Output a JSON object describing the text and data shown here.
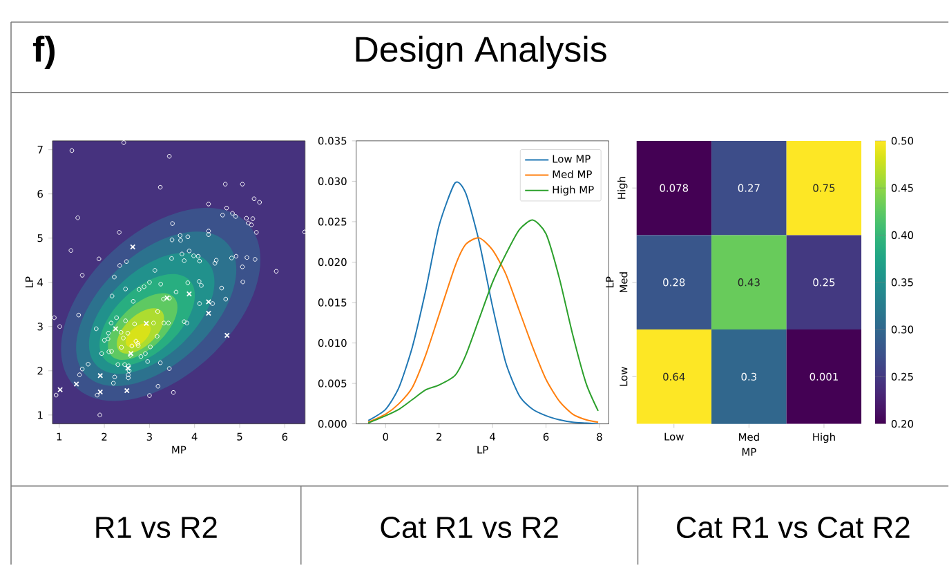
{
  "chart_data": [
    {
      "type": "other",
      "title": "Design Analysis",
      "annotations": [
        "f)"
      ]
    },
    {
      "type": "scatter",
      "subtitle": "R1 vs R2",
      "xlabel": "MP",
      "ylabel": "LP",
      "xlim": [
        0.85,
        6.45
      ],
      "ylim": [
        0.8,
        7.2
      ],
      "xticks": [
        1,
        2,
        3,
        4,
        5,
        6
      ],
      "yticks": [
        1,
        2,
        3,
        4,
        5,
        6,
        7
      ],
      "series": [
        {
          "color": "#ffffff",
          "marker": "circle",
          "x": [
            1.28,
            2.43,
            3.44,
            3.24,
            1.41,
            2.33,
            1.26,
            1.88,
            2.49,
            2.34,
            1.51,
            2.22,
            3.12,
            2.17,
            2.47,
            2.64,
            2.77,
            2.88,
            3.0,
            3.25,
            3.31,
            3.44,
            3.59,
            3.49,
            3.5,
            3.51,
            3.68,
            3.69,
            3.85,
            3.72,
            3.77,
            3.88,
            3.98,
            4.08,
            4.11,
            4.31,
            4.31,
            4.31,
            4.45,
            4.48,
            4.68,
            5.06,
            4.71,
            4.62,
            4.84,
            4.91,
            5.32,
            5.44,
            5.15,
            5.29,
            5.19,
            5.26,
            5.37,
            4.82,
            4.92,
            5.16,
            5.34,
            5.06,
            5.07,
            4.6,
            4.69,
            4.11,
            4.4,
            3.85,
            4.1,
            4.15,
            3.77,
            3.83,
            3.42,
            3.18,
            3.09,
            3.32,
            2.67,
            2.27,
            2.15,
            2.47,
            2.37,
            2.42,
            2.52,
            2.09,
            1.82,
            2.08,
            2.0,
            2.7,
            2.75,
            2.74,
            3.17,
            2.61,
            2.38,
            2.1,
            2.16,
            1.94,
            2.57,
            2.91,
            3.02,
            2.96,
            2.81,
            2.3,
            2.45,
            2.54,
            2.55,
            2.53,
            2.53,
            2.23,
            2.2,
            3.24,
            3.44,
            3.19,
            3.53,
            3.0,
            1.84,
            1.9,
            0.93,
            1.64,
            1.51,
            1.45,
            1.01,
            1.43,
            0.89,
            6.44,
            5.81
          ],
          "values": [
            6.98,
            7.16,
            6.85,
            6.15,
            5.46,
            5.13,
            4.72,
            4.53,
            4.47,
            4.38,
            4.16,
            4.12,
            4.27,
            3.69,
            3.85,
            3.57,
            3.84,
            3.9,
            4.0,
            3.96,
            3.62,
            3.64,
            3.78,
            4.54,
            4.96,
            5.33,
            5.06,
            4.95,
            5.03,
            4.64,
            4.49,
            4.71,
            4.6,
            4.59,
            4.48,
            5.16,
            5.08,
            5.77,
            4.43,
            4.5,
            6.22,
            6.22,
            5.68,
            5.52,
            5.56,
            5.49,
            5.89,
            5.81,
            5.45,
            5.44,
            5.34,
            5.3,
            5.13,
            4.55,
            4.59,
            4.56,
            4.52,
            4.35,
            4.01,
            3.87,
            3.62,
            3.52,
            3.52,
            3.99,
            4.02,
            3.93,
            3.11,
            3.08,
            3.08,
            3.34,
            3.08,
            3.08,
            3.06,
            3.2,
            3.08,
            3.13,
            2.87,
            2.74,
            2.85,
            2.85,
            2.95,
            2.72,
            2.69,
            2.67,
            2.57,
            2.62,
            2.78,
            2.56,
            2.53,
            2.43,
            2.44,
            2.39,
            2.35,
            2.39,
            2.54,
            2.21,
            2.32,
            2.14,
            2.14,
            2.11,
            2.0,
            1.91,
            1.84,
            1.86,
            1.72,
            2.18,
            2.05,
            1.65,
            1.51,
            1.44,
            1.45,
            1.0,
            1.45,
            2.15,
            2.04,
            1.91,
            3.0,
            3.26,
            3.2,
            5.14,
            4.25
          ]
        },
        {
          "color": "#ffffff",
          "marker": "cross",
          "x": [
            2.63,
            2.25,
            2.93,
            3.39,
            3.88,
            4.31,
            4.31,
            4.72,
            2.59,
            2.52,
            1.91,
            1.38,
            1.02,
            1.91,
            2.5
          ],
          "values": [
            4.8,
            2.95,
            3.07,
            3.65,
            3.74,
            3.56,
            3.3,
            2.8,
            2.39,
            2.06,
            1.89,
            1.7,
            1.57,
            1.52,
            1.55
          ]
        }
      ]
    },
    {
      "type": "line",
      "subtitle": "Cat R1 vs R2",
      "xlabel": "LP",
      "xlim": [
        -1.1,
        8.35
      ],
      "ylim": [
        0,
        0.035
      ],
      "xticks": [
        0,
        2,
        4,
        6,
        8
      ],
      "yticks": [
        {
          "value": 0,
          "label": "0.000"
        },
        {
          "value": 0.005,
          "label": "0.005"
        },
        {
          "value": 0.01,
          "label": "0.010"
        },
        {
          "value": 0.015,
          "label": "0.015"
        },
        {
          "value": 0.02,
          "label": "0.020"
        },
        {
          "value": 0.025,
          "label": "0.025"
        },
        {
          "value": 0.03,
          "label": "0.030"
        },
        {
          "value": 0.035,
          "label": "0.035"
        }
      ],
      "legend": "top right",
      "x": [
        -0.65,
        0,
        0.5,
        1,
        1.5,
        2,
        2.6,
        3,
        3.5,
        4,
        4.5,
        5,
        5.5,
        6,
        6.5,
        7,
        7.5,
        7.95
      ],
      "series": [
        {
          "name": "Low MP",
          "color": "#1f77b4",
          "values": [
            0.0004,
            0.0018,
            0.0045,
            0.0095,
            0.0165,
            0.0245,
            0.0298,
            0.0285,
            0.0225,
            0.0145,
            0.0075,
            0.0035,
            0.0018,
            0.001,
            0.0005,
            0.0002,
            0.0001,
            0.0
          ]
        },
        {
          "name": "Med MP",
          "color": "#ff7f0e",
          "values": [
            0.0002,
            0.0012,
            0.0025,
            0.0045,
            0.0085,
            0.0135,
            0.0195,
            0.0222,
            0.023,
            0.0215,
            0.0185,
            0.014,
            0.0095,
            0.0055,
            0.0028,
            0.0012,
            0.0005,
            0.0002
          ]
        },
        {
          "name": "High MP",
          "color": "#2ca02c",
          "values": [
            0.0001,
            0.001,
            0.0018,
            0.003,
            0.0042,
            0.0048,
            0.006,
            0.0085,
            0.013,
            0.0175,
            0.021,
            0.024,
            0.0252,
            0.0235,
            0.018,
            0.011,
            0.005,
            0.0016
          ]
        }
      ]
    },
    {
      "type": "heatmap",
      "subtitle": "Cat R1 vs Cat R2",
      "xlabel": "MP",
      "ylabel": "LP",
      "categories": [
        "Low",
        "Med",
        "High"
      ],
      "y_categories": [
        "High",
        "Med",
        "Low"
      ],
      "cells": [
        [
          0.078,
          0.27,
          0.75
        ],
        [
          0.28,
          0.43,
          0.25
        ],
        [
          0.64,
          0.3,
          0.001
        ]
      ],
      "data_labels": true,
      "clim": [
        0.2,
        0.5
      ],
      "cticks": [
        {
          "value": 0.2,
          "label": "0.20"
        },
        {
          "value": 0.25,
          "label": "0.25"
        },
        {
          "value": 0.3,
          "label": "0.30"
        },
        {
          "value": 0.35,
          "label": "0.35"
        },
        {
          "value": 0.4,
          "label": "0.40"
        },
        {
          "value": 0.45,
          "label": "0.45"
        },
        {
          "value": 0.5,
          "label": "0.50"
        }
      ]
    }
  ]
}
